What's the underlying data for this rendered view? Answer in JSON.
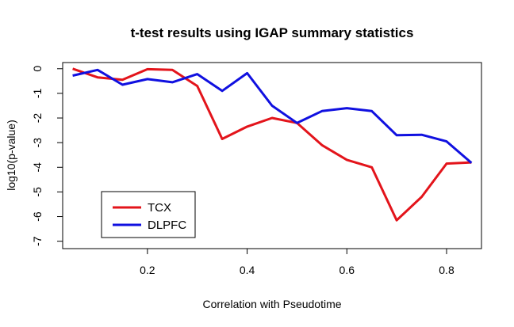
{
  "chart_data": {
    "type": "line",
    "title": "t-test results using IGAP summary statistics",
    "xlabel": "Correlation with Pseudotime",
    "ylabel": "log10(p-value)",
    "xlim": [
      0.03,
      0.87
    ],
    "ylim": [
      -7.3,
      0.25
    ],
    "x_ticks": [
      0.2,
      0.4,
      0.6,
      0.8
    ],
    "x_tick_labels": [
      "0.2",
      "0.4",
      "0.6",
      "0.8"
    ],
    "y_ticks": [
      0,
      -1,
      -2,
      -3,
      -4,
      -5,
      -6,
      -7
    ],
    "y_tick_labels": [
      "0",
      "-1",
      "-2",
      "-3",
      "-4",
      "-5",
      "-6",
      "-7"
    ],
    "x": [
      0.05,
      0.1,
      0.15,
      0.2,
      0.25,
      0.3,
      0.35,
      0.4,
      0.45,
      0.5,
      0.55,
      0.6,
      0.65,
      0.7,
      0.75,
      0.8,
      0.85
    ],
    "series": [
      {
        "name": "TCX",
        "color": "#e3141b",
        "values": [
          0.0,
          -0.35,
          -0.45,
          -0.02,
          -0.05,
          -0.7,
          -2.85,
          -2.35,
          -2.0,
          -2.2,
          -3.1,
          -3.7,
          -4.0,
          -6.15,
          -5.2,
          -3.85,
          -3.8
        ]
      },
      {
        "name": "DLPFC",
        "color": "#1010e0",
        "values": [
          -0.28,
          -0.05,
          -0.65,
          -0.42,
          -0.55,
          -0.22,
          -0.9,
          -0.18,
          -1.5,
          -2.2,
          -1.72,
          -1.6,
          -1.72,
          -2.7,
          -2.68,
          -2.95,
          -3.82
        ]
      }
    ],
    "legend_position": "bottom-left",
    "grid": false
  }
}
